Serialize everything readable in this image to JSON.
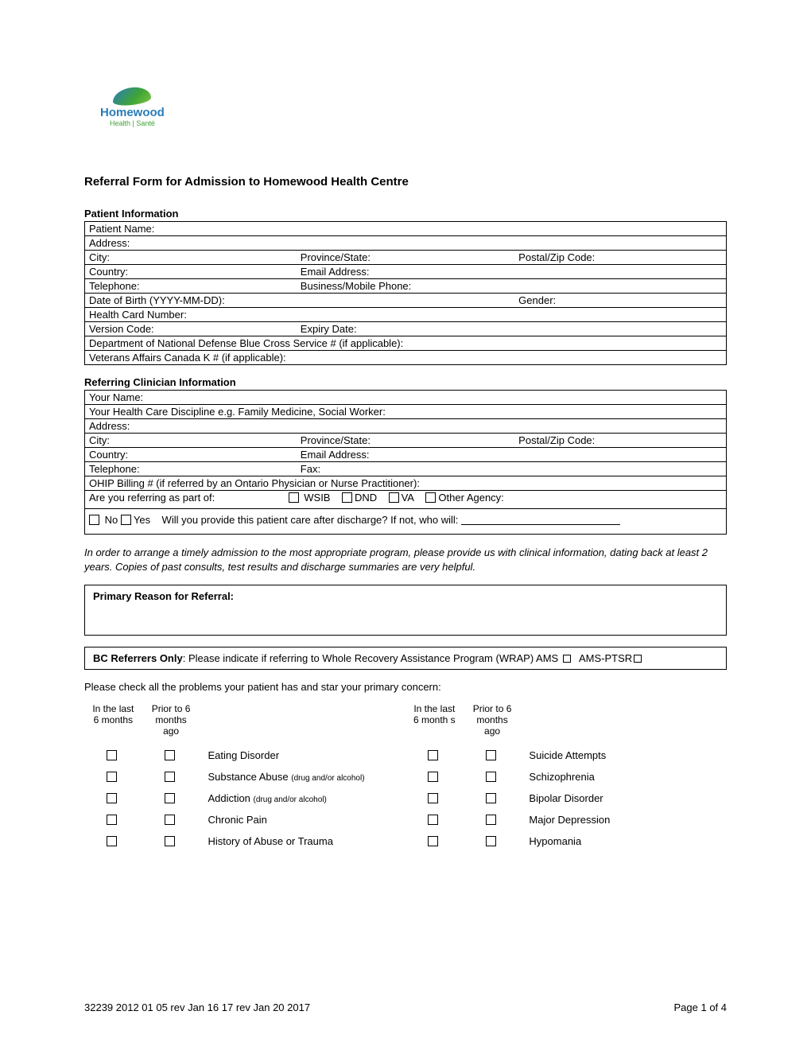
{
  "logo": {
    "name": "Homewood",
    "sub": "Health  |  Santé"
  },
  "title": "Referral Form for Admission to Homewood Health Centre",
  "patient": {
    "heading": "Patient Information",
    "rows": {
      "name": "Patient Name:",
      "address": "Address:",
      "city": "City:",
      "province": "Province/State:",
      "postal": "Postal/Zip Code:",
      "country": "Country:",
      "email": "Email Address:",
      "tel": "Telephone:",
      "busphone": "Business/Mobile Phone:",
      "dob": "Date of Birth (YYYY-MM-DD):",
      "gender": "Gender:",
      "healthcard": "Health Card Number:",
      "version": "Version Code:",
      "expiry": "Expiry Date:",
      "dnd": "Department of National Defense Blue Cross Service # (if applicable):",
      "vac": "Veterans Affairs Canada K # (if applicable):"
    }
  },
  "clinician": {
    "heading": "Referring Clinician Information",
    "rows": {
      "name": "Your Name:",
      "discipline": "Your Health Care Discipline e.g. Family Medicine, Social Worker:",
      "address": "Address:",
      "city": "City:",
      "province": "Province/State:",
      "postal": "Postal/Zip Code:",
      "country": "Country:",
      "email": "Email Address:",
      "tel": "Telephone:",
      "fax": "Fax:",
      "ohip": "OHIP Billing # (if referred by an Ontario Physician or Nurse Practitioner):",
      "refer_as": "Are you referring as part of:",
      "wsib": "WSIB",
      "dnd": "DND",
      "va": "VA",
      "other": "Other Agency:",
      "no": "No",
      "yes": "Yes",
      "postcare": "Will you provide this patient care after discharge?  If not, who will:"
    }
  },
  "note": "In order to arrange a timely admission to the most appropriate program, please provide us with clinical information, dating back at least 2 years. Copies of past consults, test results and discharge summaries are very helpful.",
  "primary_box_label": "Primary Reason for Referral:",
  "bc_box": {
    "prefix": "BC Referrers Only",
    "text": ": Please indicate if referring to Whole Recovery Assistance Program (WRAP) AMS",
    "ams_ptsr": "AMS-PTSR"
  },
  "check_instr": "Please check all the problems your patient has and star your primary concern:",
  "headers": {
    "last6": "In the last 6 months",
    "prior6": "Prior to 6 months ago",
    "last6b": "In the last 6 month s",
    "prior6b": "Prior to 6 months ago"
  },
  "problems_left": [
    {
      "label": "Eating Disorder"
    },
    {
      "label": "Substance Abuse ",
      "sub": "(drug and/or alcohol)"
    },
    {
      "label": "Addiction ",
      "sub": "(drug and/or alcohol)"
    },
    {
      "label": "Chronic Pain"
    },
    {
      "label": "History of Abuse or Trauma"
    }
  ],
  "problems_right": [
    {
      "label": "Suicide Attempts"
    },
    {
      "label": "Schizophrenia"
    },
    {
      "label": "Bipolar Disorder"
    },
    {
      "label": "Major Depression"
    },
    {
      "label": "Hypomania"
    }
  ],
  "footer": {
    "left": "32239    2012 01 05 rev  Jan 16 17  rev Jan 20 2017",
    "right": "Page 1 of 4"
  }
}
